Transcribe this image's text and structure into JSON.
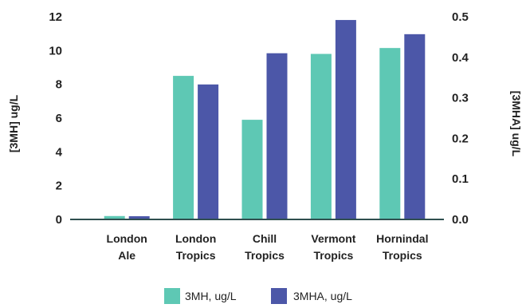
{
  "chart_data": {
    "type": "bar",
    "categories": [
      [
        "London",
        "Ale"
      ],
      [
        "London",
        "Tropics"
      ],
      [
        "Chill",
        "Tropics"
      ],
      [
        "Vermont",
        "Tropics"
      ],
      [
        "Hornindal",
        "Tropics"
      ]
    ],
    "series": [
      {
        "name": "3MH, ug/L",
        "axis": "left",
        "color": "#5ec8b4",
        "values": [
          0.2,
          8.5,
          5.9,
          9.8,
          10.15
        ]
      },
      {
        "name": "3MHA, ug/L",
        "axis": "right",
        "color": "#4c57a8",
        "values": [
          0.008,
          0.333,
          0.41,
          0.492,
          0.457
        ]
      }
    ],
    "ylabel": "[3MH] ug/L",
    "y2label": "[3MHA] ug/L",
    "ylim": [
      0,
      12
    ],
    "y2lim": [
      0,
      0.5
    ],
    "yticks": [
      "0",
      "2",
      "4",
      "6",
      "8",
      "10",
      "12"
    ],
    "y2ticks": [
      "0.0",
      "0.1",
      "0.2",
      "0.3",
      "0.4",
      "0.5"
    ],
    "grid": false,
    "legend_position": "bottom"
  }
}
